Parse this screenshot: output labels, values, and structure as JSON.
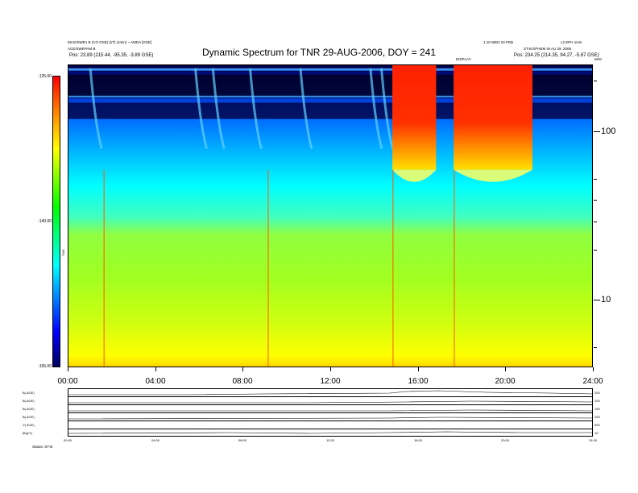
{
  "header": {
    "left_line1": "MAG/SWE1 B (CO GSE) [nT] (1min) ~ AMDA [GSE]",
    "left_line2": "ACE/SWEPAM B",
    "left_line3": "Pos:   23.89 (215.44, -95.35, -3.89 GSE)",
    "right_line1": "1.10 WED 24-FEB",
    "right_line2": "L2 EPH 1min",
    "right_line3": "ST-B EPHEM IN AU 29, 2006",
    "right_line4": "Pos:   234.25 (214.35, 94.27, -5.87 GSE)",
    "mid_tag": "DISPLAY",
    "mhz_tag": "MHz"
  },
  "title": "Dynamic Spectrum for TNR 29-AUG-2006, DOY = 241",
  "colorbar": {
    "ticks": [
      "-125.00",
      "-140.00",
      "-155.00"
    ],
    "unit": "TNR"
  },
  "colors": {
    "background": "#00ffff",
    "burst": "#ff0000",
    "low_band": "#ffff00"
  },
  "chart_data": {
    "type": "heatmap",
    "title": "Dynamic Spectrum for TNR 29-AUG-2006, DOY = 241",
    "xlabel": "",
    "ylabel": "MHz",
    "x_tick_labels": [
      "00:00",
      "04:00",
      "08:00",
      "12:00",
      "16:00",
      "20:00",
      "24:00"
    ],
    "x_range_hours": [
      0,
      24
    ],
    "y_scale": "log",
    "y_tick_labels": [
      "10",
      "100"
    ],
    "y_range": [
      4,
      250
    ],
    "color_range_db": [
      -155,
      -125
    ],
    "bursts": [
      {
        "start_h": 14.8,
        "end_h": 16.8,
        "freq_top": 250,
        "freq_bottom": 60
      },
      {
        "start_h": 17.6,
        "end_h": 21.2,
        "freq_top": 250,
        "freq_bottom": 60
      }
    ]
  },
  "lower_panels": {
    "left_labels": [
      "B( AGE)",
      "B( AGE)",
      "B( AGE)",
      "B( AGE)",
      "V( AGE)",
      "|B|(nT)"
    ],
    "right_labels": [
      "200",
      "200",
      "150",
      "200",
      "500",
      "10"
    ],
    "x_tick_labels": [
      "00:00",
      "04:00",
      "08:00",
      "12:00",
      "16:00",
      "20:00",
      "24:00"
    ],
    "footer": "Status:  ST-B"
  }
}
